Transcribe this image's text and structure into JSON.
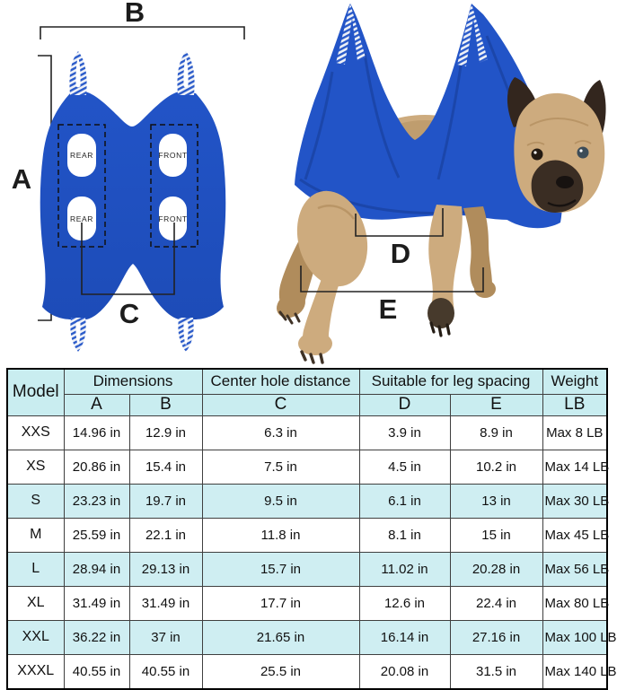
{
  "diagram_flat": {
    "dim_labels": {
      "a": "A",
      "b": "B",
      "c": "C"
    },
    "holes": [
      {
        "label": "REAR",
        "position": "top-left"
      },
      {
        "label": "FRONT",
        "position": "top-right"
      },
      {
        "label": "REAR",
        "position": "bottom-left"
      },
      {
        "label": "FRONT",
        "position": "bottom-right"
      }
    ]
  },
  "photo": {
    "subject": "french bulldog hanging in blue grooming hammock",
    "dim_labels": {
      "d": "D",
      "e": "E"
    }
  },
  "colors": {
    "hammock_blue": "#2254c7",
    "hammock_blue_dark": "#1a43a4",
    "strap_white": "#eef1f7",
    "dog_fawn": "#cdab7e",
    "dog_fawn_dark": "#b08c5c",
    "dog_dark": "#362a21",
    "header_bg": "#c9edf0",
    "stripe_bg": "#cfeef2",
    "dim_line": "#222222"
  },
  "table": {
    "header": {
      "model": "Model",
      "groups": [
        {
          "label": "Dimensions",
          "cols": [
            "A",
            "B"
          ]
        },
        {
          "label": "Center hole distance",
          "cols": [
            "C"
          ]
        },
        {
          "label": "Suitable for leg spacing",
          "cols": [
            "D",
            "E"
          ]
        },
        {
          "label": "Weight",
          "cols": [
            "LB"
          ]
        }
      ]
    },
    "rows": [
      {
        "model": "XXS",
        "a": "14.96 in",
        "b": "12.9 in",
        "c": "6.3 in",
        "d": "3.9 in",
        "e": "8.9 in",
        "weight": "Max 8 LB",
        "shaded": false
      },
      {
        "model": "XS",
        "a": "20.86 in",
        "b": "15.4 in",
        "c": "7.5 in",
        "d": "4.5 in",
        "e": "10.2 in",
        "weight": "Max 14 LB",
        "shaded": false
      },
      {
        "model": "S",
        "a": "23.23 in",
        "b": "19.7 in",
        "c": "9.5 in",
        "d": "6.1 in",
        "e": "13 in",
        "weight": "Max 30 LB",
        "shaded": true
      },
      {
        "model": "M",
        "a": "25.59 in",
        "b": "22.1 in",
        "c": "11.8 in",
        "d": "8.1 in",
        "e": "15 in",
        "weight": "Max 45 LB",
        "shaded": false
      },
      {
        "model": "L",
        "a": "28.94 in",
        "b": "29.13 in",
        "c": "15.7 in",
        "d": "11.02 in",
        "e": "20.28 in",
        "weight": "Max 56 LB",
        "shaded": true
      },
      {
        "model": "XL",
        "a": "31.49 in",
        "b": "31.49 in",
        "c": "17.7 in",
        "d": "12.6 in",
        "e": "22.4 in",
        "weight": "Max 80 LB",
        "shaded": false
      },
      {
        "model": "XXL",
        "a": "36.22 in",
        "b": "37 in",
        "c": "21.65 in",
        "d": "16.14 in",
        "e": "27.16 in",
        "weight": "Max 100 LB",
        "shaded": true
      },
      {
        "model": "XXXL",
        "a": "40.55 in",
        "b": "40.55 in",
        "c": "25.5 in",
        "d": "20.08 in",
        "e": "31.5 in",
        "weight": "Max 140 LB",
        "shaded": false
      }
    ]
  }
}
